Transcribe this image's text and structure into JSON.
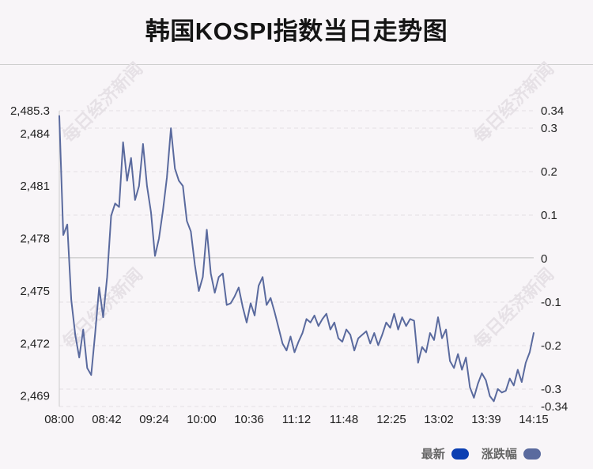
{
  "chart_data": {
    "type": "line",
    "title": "韩国KOSPI指数当日走势图",
    "x_ticks": [
      "08:00",
      "08:42",
      "09:24",
      "10:00",
      "10:36",
      "11:12",
      "11:48",
      "12:25",
      "13:02",
      "13:39",
      "14:15"
    ],
    "y_left_ticks": [
      "2,485.3",
      "2,484",
      "2,481",
      "2,478",
      "2,475",
      "2,472",
      "2,469"
    ],
    "y_left_tick_values": [
      2485.3,
      2484,
      2481,
      2478,
      2475,
      2472,
      2469
    ],
    "y_right_ticks": [
      "0.34",
      "0.3",
      "0.2",
      "0.1",
      "0",
      "-0.1",
      "-0.2",
      "-0.3",
      "-0.34"
    ],
    "y_right_tick_values": [
      0.34,
      0.3,
      0.2,
      0.1,
      0,
      -0.1,
      -0.2,
      -0.3,
      -0.34
    ],
    "ylim": [
      2468.4,
      2485.3
    ],
    "y2lim": [
      -0.34,
      0.34
    ],
    "baseline": 2476.9,
    "series": [
      {
        "name": "最新",
        "color": "#5a6a9e",
        "values": [
          2485.0,
          2478.2,
          2478.8,
          2474.5,
          2472.5,
          2471.2,
          2472.8,
          2470.6,
          2470.2,
          2472.6,
          2475.2,
          2473.5,
          2475.8,
          2479.3,
          2480.0,
          2479.8,
          2483.5,
          2481.3,
          2482.6,
          2480.2,
          2481.0,
          2483.4,
          2481.0,
          2479.5,
          2477.0,
          2478.0,
          2479.6,
          2481.5,
          2484.3,
          2482.0,
          2481.3,
          2481.0,
          2479.0,
          2478.4,
          2476.5,
          2475.0,
          2475.8,
          2478.5,
          2476.0,
          2474.9,
          2475.8,
          2476.0,
          2474.2,
          2474.3,
          2474.7,
          2475.2,
          2474.1,
          2473.2,
          2474.3,
          2473.6,
          2475.3,
          2475.8,
          2474.2,
          2474.6,
          2473.8,
          2472.9,
          2472.0,
          2471.6,
          2472.4,
          2471.5,
          2472.1,
          2472.6,
          2473.4,
          2473.2,
          2473.6,
          2473.0,
          2473.4,
          2473.7,
          2472.8,
          2473.2,
          2472.3,
          2472.1,
          2472.8,
          2472.5,
          2471.6,
          2472.3,
          2472.5,
          2472.7,
          2472.0,
          2472.6,
          2471.9,
          2472.5,
          2473.2,
          2472.9,
          2473.7,
          2472.8,
          2473.5,
          2473.0,
          2473.4,
          2473.3,
          2470.9,
          2471.8,
          2471.5,
          2472.6,
          2472.2,
          2473.5,
          2472.3,
          2472.8,
          2471.0,
          2470.6,
          2471.4,
          2470.5,
          2471.2,
          2469.5,
          2468.9,
          2469.7,
          2470.3,
          2469.9,
          2469.0,
          2468.7,
          2469.4,
          2469.2,
          2469.3,
          2470.0,
          2469.6,
          2470.5,
          2469.8,
          2470.9,
          2471.5,
          2472.6
        ]
      }
    ],
    "legend": [
      {
        "label": "最新",
        "color": "#0b3fb2"
      },
      {
        "label": "涨跌幅",
        "color": "#5a6a9e"
      }
    ],
    "watermark": "每日经济新闻"
  }
}
